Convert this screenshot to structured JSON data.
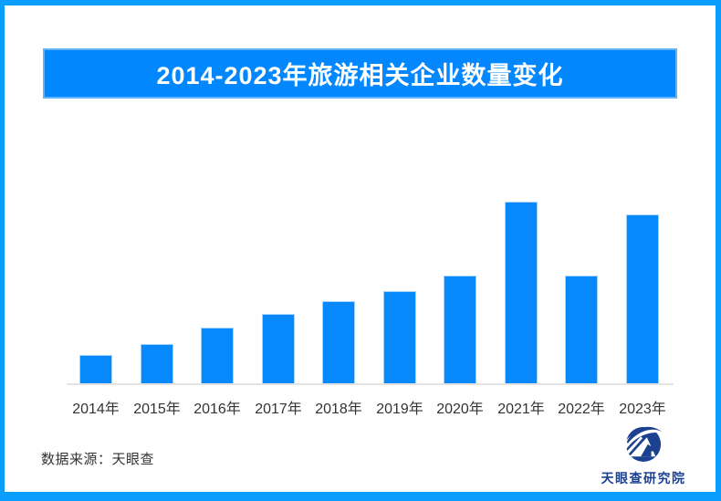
{
  "banner": {
    "label": "2014-2023年旅游相关企业数量变化",
    "background_color": "#0387fe",
    "text_color": "#ffffff"
  },
  "chart_data": {
    "type": "bar",
    "title": "2014-2023年旅游相关企业数量变化",
    "categories": [
      "2014年",
      "2015年",
      "2016年",
      "2017年",
      "2018年",
      "2019年",
      "2020年",
      "2021年",
      "2022年",
      "2023年"
    ],
    "values": [
      31,
      43,
      61,
      76,
      90,
      101,
      118,
      199,
      118,
      185
    ],
    "values_note": "相对高度估计值，图中未显示具体数值或Y轴刻度",
    "xlabel": "",
    "ylabel": "",
    "ylim": [
      0,
      210
    ],
    "grid": false,
    "legend": false,
    "y_axis_shown": false,
    "bar_color": "#0789fb",
    "axis_line_color": "#e4e4e4",
    "label_color": "#333333"
  },
  "footer": {
    "source_label": "数据来源：天眼查"
  },
  "logo": {
    "label": "天眼查研究院",
    "icon": "tianyancha-eye-logo",
    "color": "#1d4191"
  },
  "frame": {
    "border_color": "#099dfe",
    "background_color": "#ffffff"
  }
}
